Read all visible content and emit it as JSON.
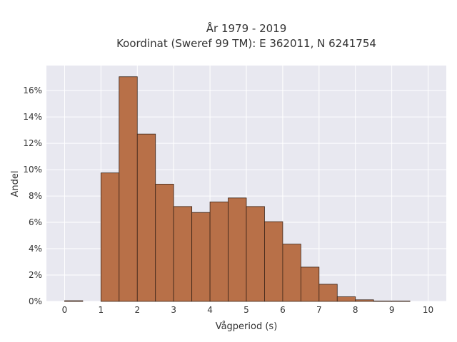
{
  "chart_data": {
    "type": "bar",
    "title_line1": "År 1979 - 2019",
    "title_line2": "Koordinat (Sweref 99 TM): E 362011, N 6241754",
    "xlabel": "Vågperiod (s)",
    "ylabel": "Andel",
    "bin_width": 0.5,
    "bins": [
      {
        "start": 0.0,
        "value": 0.0005
      },
      {
        "start": 1.0,
        "value": 0.0975
      },
      {
        "start": 1.5,
        "value": 0.1705
      },
      {
        "start": 2.0,
        "value": 0.127
      },
      {
        "start": 2.5,
        "value": 0.089
      },
      {
        "start": 3.0,
        "value": 0.072
      },
      {
        "start": 3.5,
        "value": 0.0675
      },
      {
        "start": 4.0,
        "value": 0.0755
      },
      {
        "start": 4.5,
        "value": 0.0785
      },
      {
        "start": 5.0,
        "value": 0.072
      },
      {
        "start": 5.5,
        "value": 0.0605
      },
      {
        "start": 6.0,
        "value": 0.0435
      },
      {
        "start": 6.5,
        "value": 0.026
      },
      {
        "start": 7.0,
        "value": 0.013
      },
      {
        "start": 7.5,
        "value": 0.0035
      },
      {
        "start": 8.0,
        "value": 0.0012
      },
      {
        "start": 8.5,
        "value": 0.0003
      },
      {
        "start": 9.0,
        "value": 0.0003
      }
    ],
    "xlim": [
      -0.5,
      10.5
    ],
    "ylim": [
      0,
      0.179
    ],
    "x_ticks": [
      {
        "value": 0,
        "label": "0"
      },
      {
        "value": 1,
        "label": "1"
      },
      {
        "value": 2,
        "label": "2"
      },
      {
        "value": 3,
        "label": "3"
      },
      {
        "value": 4,
        "label": "4"
      },
      {
        "value": 5,
        "label": "5"
      },
      {
        "value": 6,
        "label": "6"
      },
      {
        "value": 7,
        "label": "7"
      },
      {
        "value": 8,
        "label": "8"
      },
      {
        "value": 9,
        "label": "9"
      },
      {
        "value": 10,
        "label": "10"
      }
    ],
    "y_ticks": [
      {
        "value": 0,
        "label": "0%"
      },
      {
        "value": 0.02,
        "label": "2%"
      },
      {
        "value": 0.04,
        "label": "4%"
      },
      {
        "value": 0.06,
        "label": "6%"
      },
      {
        "value": 0.08,
        "label": "8%"
      },
      {
        "value": 0.1,
        "label": "10%"
      },
      {
        "value": 0.12,
        "label": "12%"
      },
      {
        "value": 0.14,
        "label": "14%"
      },
      {
        "value": 0.16,
        "label": "16%"
      }
    ],
    "grid": true,
    "colors": {
      "bar_fill": "#b87048",
      "bar_stroke": "#3a2418",
      "plot_bg": "#e8e8f0",
      "grid": "#ffffff"
    }
  }
}
